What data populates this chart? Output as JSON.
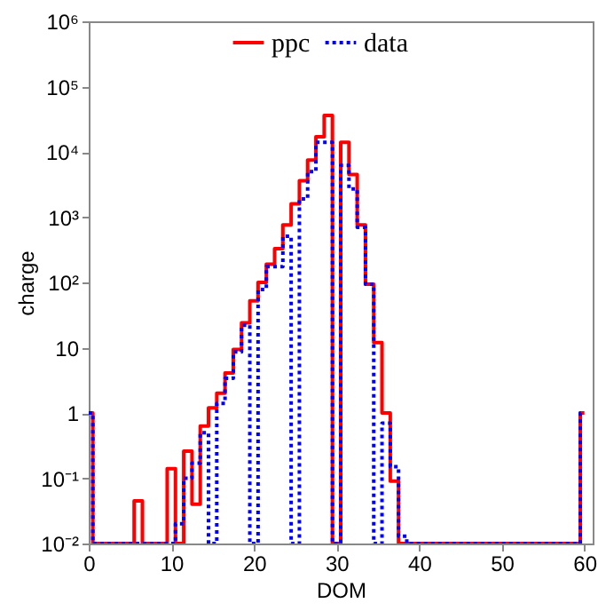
{
  "chart_data": {
    "type": "step",
    "xlabel": "DOM",
    "ylabel": "charge",
    "log": "y",
    "x": [
      0,
      1,
      2,
      3,
      4,
      5,
      6,
      7,
      8,
      9,
      10,
      11,
      12,
      13,
      14,
      15,
      16,
      17,
      18,
      19,
      20,
      21,
      22,
      23,
      24,
      25,
      26,
      27,
      28,
      29,
      30,
      31,
      32,
      33,
      34,
      35,
      36,
      37,
      38,
      39,
      40,
      41,
      42,
      43,
      44,
      45,
      46,
      47,
      48,
      49,
      50,
      51,
      52,
      53,
      54,
      55,
      56,
      57,
      58,
      59,
      60
    ],
    "series": [
      {
        "name": "ppc",
        "color": "#ff0000",
        "line_style": "solid",
        "values": [
          1,
          0.01,
          0.01,
          0.01,
          0.01,
          0.01,
          0.045,
          0.01,
          0.01,
          0.01,
          0.14,
          0.01,
          0.26,
          0.04,
          0.63,
          1.2,
          2,
          4.1,
          9.4,
          24,
          52,
          100,
          190,
          330,
          760,
          1600,
          3600,
          7500,
          17000,
          36000,
          0.01,
          14000,
          4500,
          760,
          94,
          12,
          1,
          0.09,
          0.01,
          0.01,
          0.01,
          0.01,
          0.01,
          0.01,
          0.01,
          0.01,
          0.01,
          0.01,
          0.01,
          0.01,
          0.01,
          0.01,
          0.01,
          0.01,
          0.01,
          0.01,
          0.01,
          0.01,
          0.01,
          0.01,
          1
        ]
      },
      {
        "name": "data",
        "color": "#0000ff",
        "line_style": "dotted",
        "values": [
          1,
          0.01,
          0.01,
          0.01,
          0.01,
          0.01,
          0.01,
          0.01,
          0.01,
          0.01,
          0.01,
          0.02,
          0.1,
          0.17,
          0.5,
          0.01,
          1.4,
          3.4,
          8.6,
          22,
          0.01,
          78,
          175,
          175,
          510,
          0.01,
          1900,
          5000,
          14000,
          14000,
          0.01,
          6200,
          2700,
          700,
          94,
          0.01,
          0.7,
          0.15,
          0.013,
          0.01,
          0.01,
          0.01,
          0.01,
          0.01,
          0.01,
          0.01,
          0.01,
          0.01,
          0.01,
          0.01,
          0.01,
          0.01,
          0.01,
          0.01,
          0.01,
          0.01,
          0.01,
          0.01,
          0.01,
          0.01,
          1
        ]
      }
    ],
    "xlim": [
      0,
      61
    ],
    "xticks": [
      0,
      10,
      20,
      30,
      40,
      50,
      60
    ],
    "ylim": [
      0.01,
      1000000
    ],
    "yticks": [
      {
        "value": 0.01,
        "label": "10⁻²"
      },
      {
        "value": 0.1,
        "label": "10⁻¹"
      },
      {
        "value": 1,
        "label": "1"
      },
      {
        "value": 10,
        "label": "10"
      },
      {
        "value": 100,
        "label": "10²"
      },
      {
        "value": 1000,
        "label": "10³"
      },
      {
        "value": 10000,
        "label": "10⁴"
      },
      {
        "value": 100000,
        "label": "10⁵"
      },
      {
        "value": 1000000,
        "label": "10⁶"
      }
    ],
    "grid": false,
    "legend": "top",
    "marker": "none"
  }
}
